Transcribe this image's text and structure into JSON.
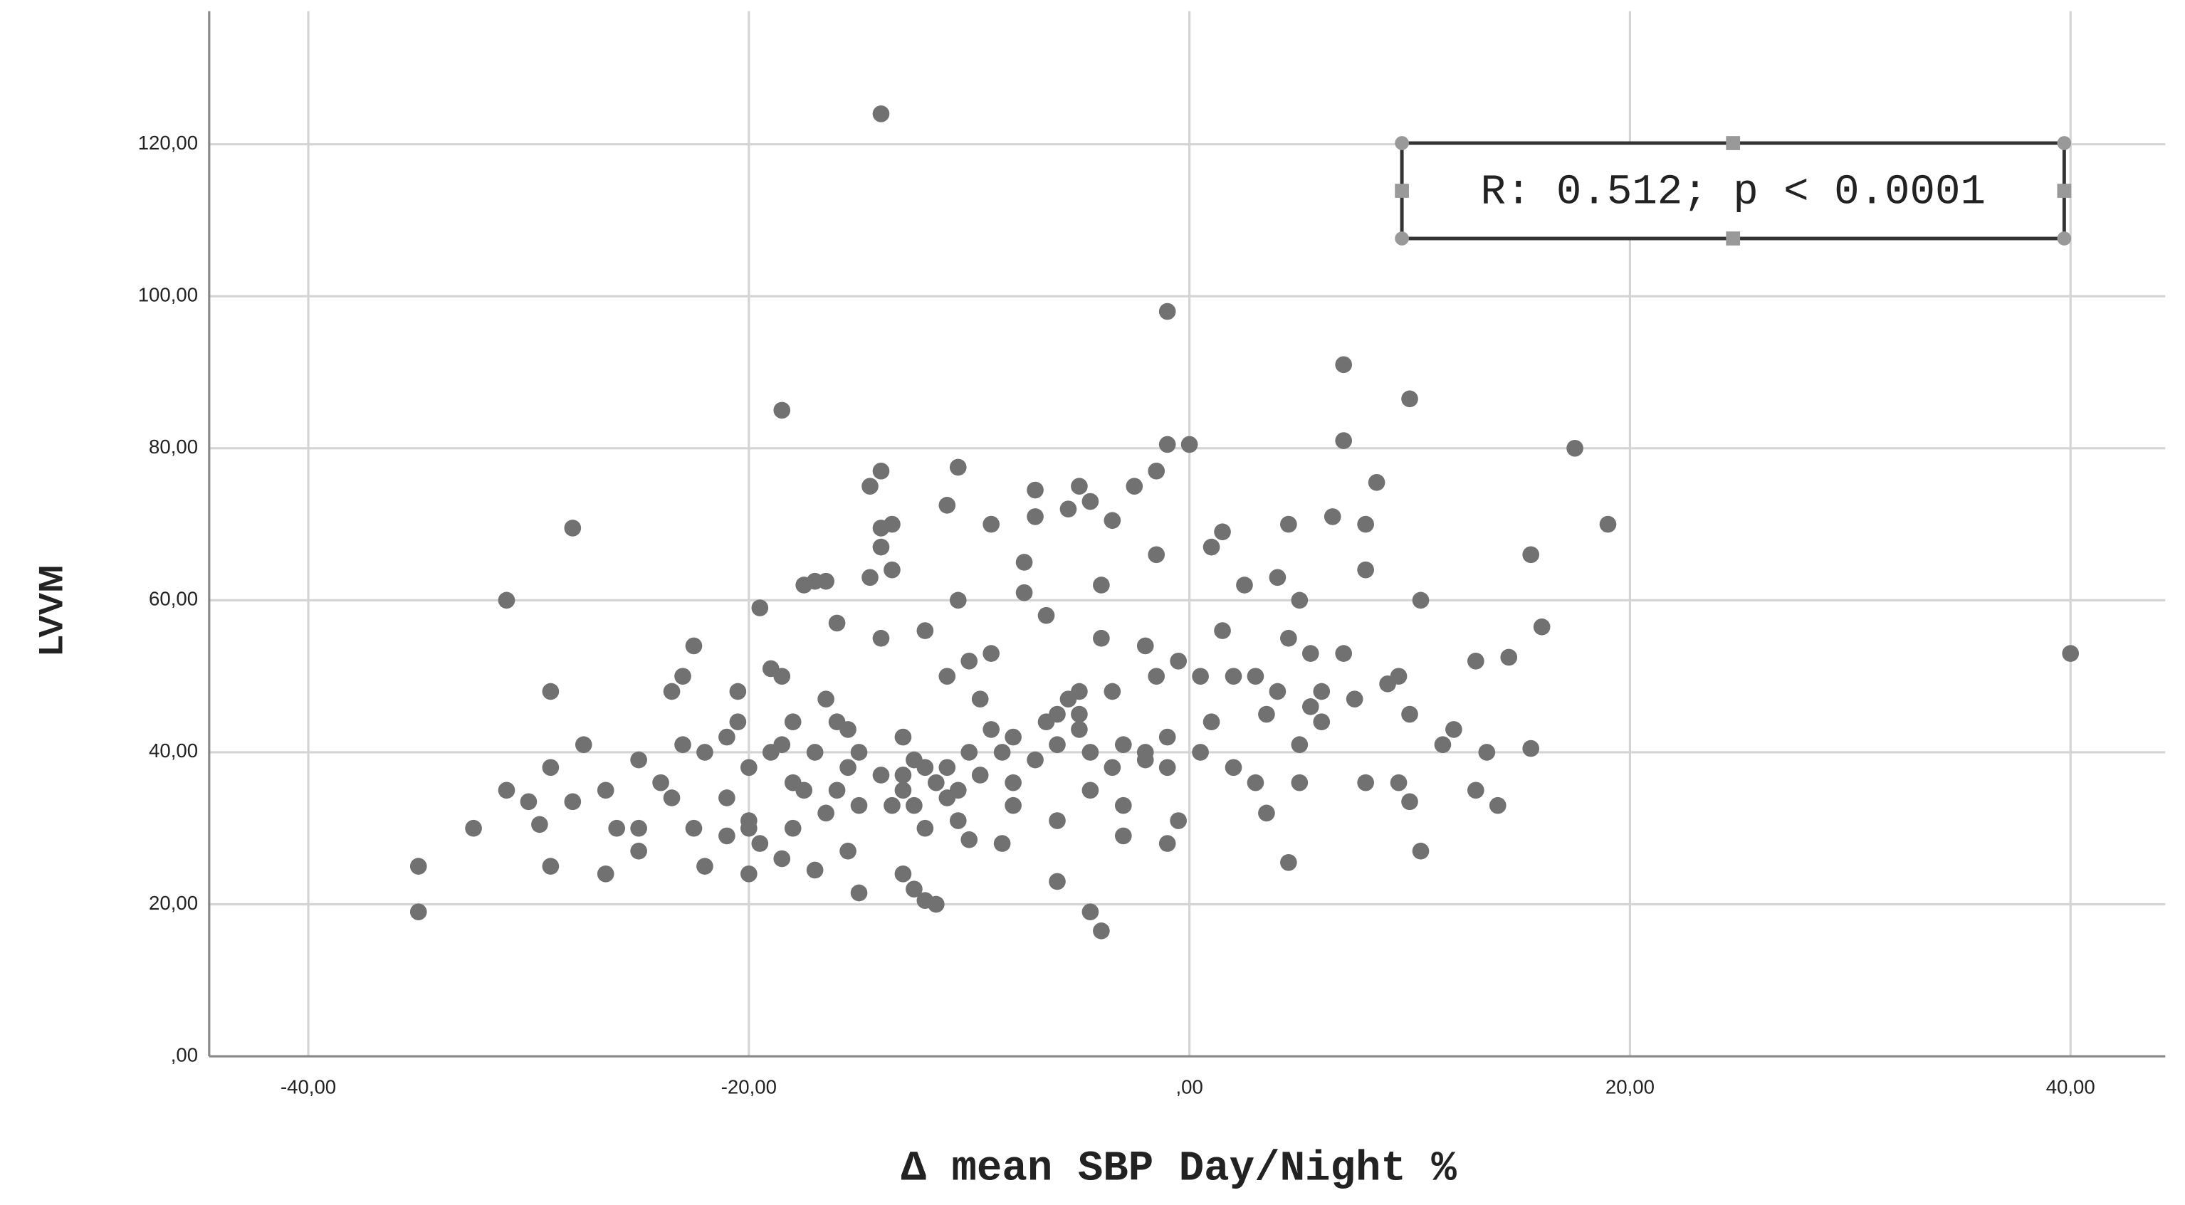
{
  "chart_data": {
    "type": "scatter",
    "x_label": "Δ mean SBP Day/Night %",
    "y_label": "LVVM",
    "annotation": "R: 0.512; p < 0.0001",
    "color": "#717171",
    "grid": true,
    "xlim": [
      -44.5,
      44.3
    ],
    "ylim": [
      0,
      137.5
    ],
    "xticks": [
      {
        "value": -40,
        "label": "-40,00"
      },
      {
        "value": -20,
        "label": "-20,00"
      },
      {
        "value": 0,
        "label": ",00"
      },
      {
        "value": 20,
        "label": "20,00"
      },
      {
        "value": 40,
        "label": "40,00"
      }
    ],
    "yticks": [
      {
        "value": 0,
        "label": ",00"
      },
      {
        "value": 20,
        "label": "20,00"
      },
      {
        "value": 40,
        "label": "40,00"
      },
      {
        "value": 60,
        "label": "60,00"
      },
      {
        "value": 80,
        "label": "80,00"
      },
      {
        "value": 100,
        "label": "100,00"
      },
      {
        "value": 120,
        "label": "120,00"
      }
    ],
    "x": [
      -14,
      -1,
      7,
      10,
      -18.5,
      17.5,
      7,
      -1,
      -28,
      19,
      -31,
      -29,
      40,
      -35,
      -35,
      -32.5,
      -31,
      -30,
      -29.5,
      -29,
      -29,
      -27.5,
      -28,
      -26.5,
      -26.5,
      -26,
      -25,
      -25,
      -25,
      -24,
      -23.5,
      -23.5,
      -23,
      -22.5,
      -23,
      -22.5,
      -22,
      -22,
      -21,
      -21,
      -20.5,
      -20.5,
      -20,
      -20,
      -20,
      -19.5,
      -19,
      -18.5,
      -18.5,
      -18,
      -18,
      -17.5,
      -17,
      -16.5,
      -17,
      -16.5,
      -16,
      -16,
      -15.5,
      -15,
      -15,
      -15.5,
      -14.5,
      -14,
      -14,
      -13.5,
      -14,
      -14.5,
      -13.5,
      -14,
      -13,
      -13,
      -12.5,
      -12,
      -13,
      -12.5,
      -12,
      -11.5,
      -12,
      -11,
      -11,
      -10.5,
      -10.5,
      -10,
      -10.5,
      -11,
      -10.5,
      -10,
      -9.5,
      -9,
      -9,
      -9,
      -8.5,
      -8,
      -8,
      -8.5,
      -7.5,
      -7.5,
      -7,
      -7,
      -6.5,
      -6.5,
      -6,
      -6,
      -6,
      -5.5,
      -5,
      -4.5,
      -5,
      -5,
      -4.5,
      -4.5,
      -4.5,
      -4,
      -4,
      -4,
      -3.5,
      -3.5,
      -3.5,
      -3,
      -3,
      -2.5,
      -2,
      -2,
      -1.5,
      -1.5,
      -1.5,
      -1,
      -1,
      -0.5,
      -0.5,
      0,
      0.5,
      0.5,
      1,
      1,
      1.5,
      1.5,
      2,
      2,
      2.5,
      3,
      3,
      3.5,
      3.5,
      4,
      4,
      4.5,
      4.5,
      4.5,
      5,
      5,
      5,
      5.5,
      5.5,
      6,
      6,
      6.5,
      7,
      7.5,
      8,
      8,
      8,
      8.5,
      9,
      9.5,
      9.5,
      10,
      10,
      10.5,
      10.5,
      11.5,
      12,
      13,
      13,
      13.5,
      14,
      14.5,
      15.5,
      15.5,
      16,
      -17,
      -16,
      -15,
      -14,
      -13,
      -12,
      -11,
      -10,
      -11.5,
      -12.5,
      -13.5,
      -15.5,
      -16.5,
      -18,
      -19,
      -20,
      -21,
      -19.5,
      -18.5,
      -17.5,
      -9.5,
      -8,
      -7,
      -6,
      -5.5,
      -5,
      -3,
      -2,
      -1
    ],
    "values": [
      124,
      98,
      91,
      86.5,
      85,
      80,
      81,
      80.5,
      69.5,
      70,
      60,
      48,
      53,
      25,
      19,
      30,
      35,
      33.5,
      30.5,
      38,
      25,
      41,
      33.5,
      35,
      24,
      30,
      27,
      30,
      39,
      36,
      34,
      48,
      50,
      54,
      41,
      30,
      25,
      40,
      34,
      29,
      44,
      48,
      38,
      31,
      24,
      59,
      51,
      50,
      41,
      36,
      30,
      62,
      62.5,
      62.5,
      24.5,
      47,
      57,
      44,
      38,
      33,
      21.5,
      27,
      75,
      77,
      69.5,
      70,
      67,
      63,
      64,
      55,
      42,
      37,
      33,
      30,
      24,
      22,
      20.5,
      20,
      56,
      50,
      38,
      35,
      31,
      28.5,
      77.5,
      72.5,
      60,
      52,
      47,
      70,
      53,
      43,
      40,
      36,
      33,
      28,
      65,
      61,
      71,
      74.5,
      58,
      44,
      41,
      31,
      23,
      72,
      75,
      73,
      48,
      45,
      40,
      35,
      19,
      16.5,
      62,
      55,
      70.5,
      48,
      38,
      33,
      29,
      75,
      54,
      40,
      77,
      66,
      50,
      38,
      28,
      52,
      31,
      80.5,
      50,
      40,
      67,
      44,
      69,
      56,
      50,
      38,
      62,
      50,
      36,
      45,
      32,
      63,
      48,
      70,
      55,
      25.5,
      60,
      41,
      36,
      53,
      46,
      48,
      44,
      71,
      53,
      47,
      70,
      64,
      36,
      75.5,
      49,
      50,
      36,
      45,
      33.5,
      27,
      60,
      41,
      43,
      52,
      35,
      40,
      33,
      52.5,
      66,
      40.5,
      56.5,
      40,
      35,
      40,
      37,
      35,
      38,
      34,
      40,
      36,
      39,
      33,
      43,
      32,
      44,
      40,
      30,
      42,
      28,
      26,
      35,
      37,
      42,
      39,
      45,
      47,
      43,
      41,
      39,
      42
    ]
  }
}
